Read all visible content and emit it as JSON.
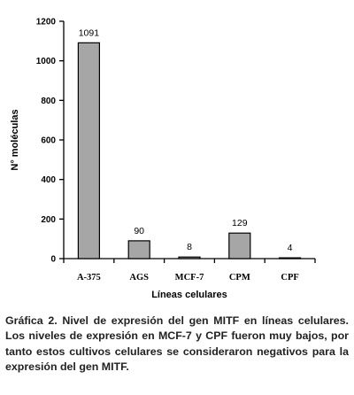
{
  "chart_data": {
    "type": "bar",
    "categories": [
      "A-375",
      "AGS",
      "MCF-7",
      "CPM",
      "CPF"
    ],
    "values": [
      1091,
      90,
      8,
      129,
      4
    ],
    "data_labels": [
      "1091",
      "90",
      "8",
      "129",
      "4"
    ],
    "xlabel": "Líneas celulares",
    "ylabel": "N° moléculas",
    "ylim": [
      0,
      1200
    ],
    "yticks": [
      0,
      200,
      400,
      600,
      800,
      1000,
      1200
    ],
    "grid": false,
    "legend": "none",
    "colors": {
      "bar_fill": "#a6a6a6",
      "bar_stroke": "#000000",
      "axis": "#000000"
    }
  },
  "caption": "Gráfica 2. Nivel de expresión del gen MITF en líneas celulares. Los niveles de expresión en MCF-7 y CPF fueron muy bajos, por tanto estos cultivos celulares se consideraron negativos para la expresión del gen MITF."
}
